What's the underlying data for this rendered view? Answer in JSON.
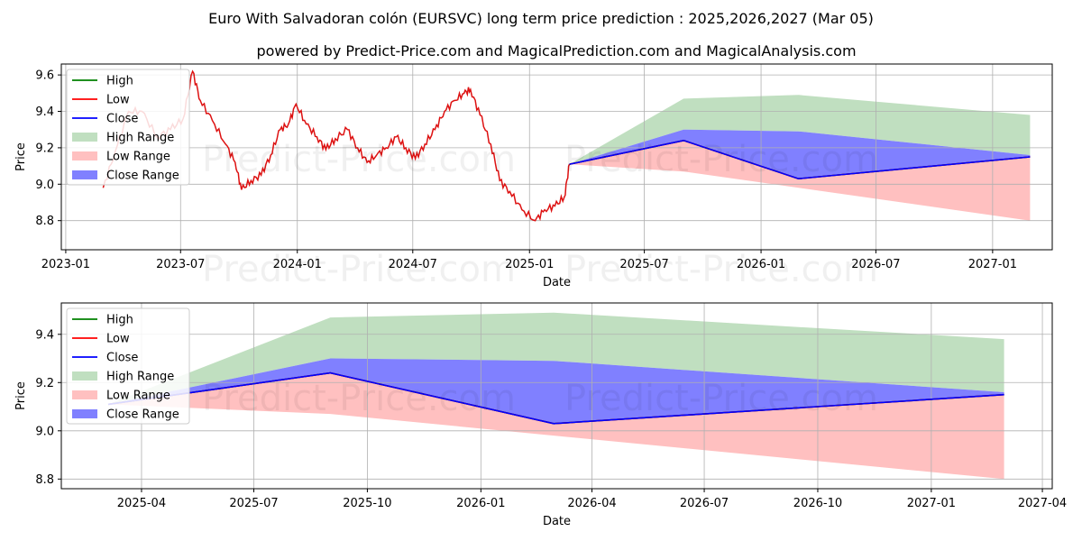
{
  "title": "Euro With Salvadoran colón (EURSVC) long term price prediction : 2025,2026,2027 (Mar 05)",
  "subtitle": "powered by Predict-Price.com and MagicalPrediction.com and MagicalAnalysis.com",
  "watermark": "Predict-Price.com",
  "colors": {
    "high": "#008000",
    "low": "#ff0000",
    "close": "#0000ff",
    "high_range": "#c0dfc0",
    "low_range": "#ffc0c0",
    "close_range": "#8080ff",
    "history": "#dd1111"
  },
  "chart_data": [
    {
      "type": "line",
      "title": "Euro With Salvadoran colón (EURSVC) long term price prediction : 2025,2026,2027 (Mar 05)",
      "xlabel": "Date",
      "ylabel": "Price",
      "xlim": [
        "2022-12-25",
        "2027-04-05"
      ],
      "ylim": [
        8.64,
        9.66
      ],
      "grid": true,
      "legend_position": "top-left",
      "x_ticks": [
        "2023-01",
        "2023-07",
        "2024-01",
        "2024-07",
        "2025-01",
        "2025-07",
        "2026-01",
        "2026-07",
        "2027-01"
      ],
      "y_ticks": [
        "8.8",
        "9.0",
        "9.2",
        "9.4",
        "9.6"
      ],
      "legend": [
        "High",
        "Low",
        "Close",
        "High Range",
        "Low Range",
        "Close Range"
      ],
      "history": {
        "name": "Low",
        "points": [
          [
            "2023-03-01",
            8.98
          ],
          [
            "2023-03-20",
            9.18
          ],
          [
            "2023-04-10",
            9.4
          ],
          [
            "2023-05-01",
            9.4
          ],
          [
            "2023-05-25",
            9.26
          ],
          [
            "2023-06-15",
            9.3
          ],
          [
            "2023-07-05",
            9.36
          ],
          [
            "2023-07-20",
            9.62
          ],
          [
            "2023-08-01",
            9.46
          ],
          [
            "2023-08-20",
            9.35
          ],
          [
            "2023-09-10",
            9.22
          ],
          [
            "2023-09-25",
            9.12
          ],
          [
            "2023-10-05",
            8.97
          ],
          [
            "2023-10-20",
            9.02
          ],
          [
            "2023-11-05",
            9.05
          ],
          [
            "2023-11-20",
            9.16
          ],
          [
            "2023-12-05",
            9.3
          ],
          [
            "2023-12-18",
            9.33
          ],
          [
            "2023-12-30",
            9.44
          ],
          [
            "2024-01-15",
            9.33
          ],
          [
            "2024-02-01",
            9.26
          ],
          [
            "2024-02-15",
            9.19
          ],
          [
            "2024-03-01",
            9.25
          ],
          [
            "2024-03-20",
            9.3
          ],
          [
            "2024-04-05",
            9.2
          ],
          [
            "2024-04-20",
            9.12
          ],
          [
            "2024-05-05",
            9.16
          ],
          [
            "2024-05-20",
            9.2
          ],
          [
            "2024-06-05",
            9.26
          ],
          [
            "2024-06-20",
            9.2
          ],
          [
            "2024-07-05",
            9.14
          ],
          [
            "2024-07-20",
            9.22
          ],
          [
            "2024-08-05",
            9.3
          ],
          [
            "2024-08-20",
            9.4
          ],
          [
            "2024-09-05",
            9.46
          ],
          [
            "2024-09-20",
            9.5
          ],
          [
            "2024-09-30",
            9.52
          ],
          [
            "2024-10-15",
            9.38
          ],
          [
            "2024-11-01",
            9.22
          ],
          [
            "2024-11-15",
            9.02
          ],
          [
            "2024-12-01",
            8.96
          ],
          [
            "2024-12-20",
            8.86
          ],
          [
            "2025-01-10",
            8.8
          ],
          [
            "2025-01-25",
            8.86
          ],
          [
            "2025-02-10",
            8.88
          ],
          [
            "2025-02-25",
            8.93
          ],
          [
            "2025-03-05",
            9.11
          ]
        ]
      },
      "series": [
        {
          "name": "High",
          "x": [
            "2025-03-05",
            "2025-09-01",
            "2026-03-01",
            "2027-03-01"
          ],
          "values": [
            9.11,
            9.24,
            9.03,
            9.15
          ]
        },
        {
          "name": "Low",
          "x": [
            "2025-03-05",
            "2025-09-01",
            "2026-03-01",
            "2027-03-01"
          ],
          "values": [
            9.11,
            9.24,
            9.03,
            9.15
          ]
        },
        {
          "name": "Close",
          "x": [
            "2025-03-05",
            "2025-09-01",
            "2026-03-01",
            "2027-03-01"
          ],
          "values": [
            9.11,
            9.24,
            9.03,
            9.15
          ]
        }
      ],
      "ranges": [
        {
          "name": "High Range",
          "x": [
            "2025-03-05",
            "2025-09-01",
            "2026-03-01",
            "2027-03-01"
          ],
          "upper": [
            9.11,
            9.47,
            9.49,
            9.38
          ],
          "lower": [
            9.11,
            9.3,
            9.29,
            9.16
          ]
        },
        {
          "name": "Close Range",
          "x": [
            "2025-03-05",
            "2025-09-01",
            "2026-03-01",
            "2027-03-01"
          ],
          "upper": [
            9.11,
            9.3,
            9.29,
            9.16
          ],
          "lower": [
            9.11,
            9.24,
            9.03,
            9.15
          ]
        },
        {
          "name": "Low Range",
          "x": [
            "2025-03-05",
            "2025-09-01",
            "2026-03-01",
            "2027-03-01"
          ],
          "upper": [
            9.11,
            9.24,
            9.03,
            9.15
          ],
          "lower": [
            9.11,
            9.07,
            8.98,
            8.8
          ]
        }
      ]
    },
    {
      "type": "line",
      "title": "",
      "xlabel": "Date",
      "ylabel": "Price",
      "xlim": [
        "2025-01-26",
        "2027-04-09"
      ],
      "ylim": [
        8.76,
        9.53
      ],
      "grid": true,
      "legend_position": "top-left",
      "x_ticks": [
        "2025-04",
        "2025-07",
        "2025-10",
        "2026-01",
        "2026-04",
        "2026-07",
        "2026-10",
        "2027-01",
        "2027-04"
      ],
      "y_ticks": [
        "8.8",
        "9.0",
        "9.2",
        "9.4"
      ],
      "legend": [
        "High",
        "Low",
        "Close",
        "High Range",
        "Low Range",
        "Close Range"
      ],
      "series": [
        {
          "name": "High",
          "x": [
            "2025-03-05",
            "2025-09-01",
            "2026-03-01",
            "2027-03-01"
          ],
          "values": [
            9.11,
            9.24,
            9.03,
            9.15
          ]
        },
        {
          "name": "Low",
          "x": [
            "2025-03-05",
            "2025-09-01",
            "2026-03-01",
            "2027-03-01"
          ],
          "values": [
            9.11,
            9.24,
            9.03,
            9.15
          ]
        },
        {
          "name": "Close",
          "x": [
            "2025-03-05",
            "2025-09-01",
            "2026-03-01",
            "2027-03-01"
          ],
          "values": [
            9.11,
            9.24,
            9.03,
            9.15
          ]
        }
      ],
      "ranges": [
        {
          "name": "High Range",
          "x": [
            "2025-03-05",
            "2025-09-01",
            "2026-03-01",
            "2027-03-01"
          ],
          "upper": [
            9.11,
            9.47,
            9.49,
            9.38
          ],
          "lower": [
            9.11,
            9.3,
            9.29,
            9.16
          ]
        },
        {
          "name": "Close Range",
          "x": [
            "2025-03-05",
            "2025-09-01",
            "2026-03-01",
            "2027-03-01"
          ],
          "upper": [
            9.11,
            9.3,
            9.29,
            9.16
          ],
          "lower": [
            9.11,
            9.24,
            9.03,
            9.15
          ]
        },
        {
          "name": "Low Range",
          "x": [
            "2025-03-05",
            "2025-09-01",
            "2026-03-01",
            "2027-03-01"
          ],
          "upper": [
            9.11,
            9.24,
            9.03,
            9.15
          ],
          "lower": [
            9.11,
            9.07,
            8.98,
            8.8
          ]
        }
      ]
    }
  ]
}
